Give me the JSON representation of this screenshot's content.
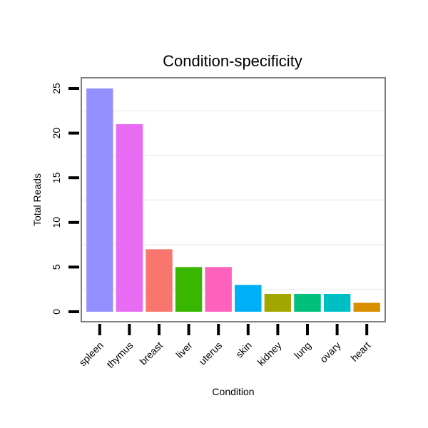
{
  "chart_data": {
    "type": "bar",
    "title": "Condition-specificity",
    "xlabel": "Condition",
    "ylabel": "Total Reads",
    "categories": [
      "spleen",
      "thymus",
      "breast",
      "liver",
      "uterus",
      "skin",
      "kidney",
      "lung",
      "ovary",
      "heart"
    ],
    "values": [
      25,
      21,
      7,
      5,
      5,
      3,
      2,
      2,
      2,
      1
    ],
    "colors": [
      "#9590FF",
      "#E76BF3",
      "#F8766D",
      "#39B600",
      "#FF62BC",
      "#00B0F6",
      "#A3A500",
      "#00BF7D",
      "#00BFC4",
      "#D89000"
    ],
    "yticks": [
      0,
      5,
      10,
      15,
      20,
      25
    ],
    "ylim": [
      -1,
      26.3
    ],
    "grid": true,
    "legend": "none"
  }
}
